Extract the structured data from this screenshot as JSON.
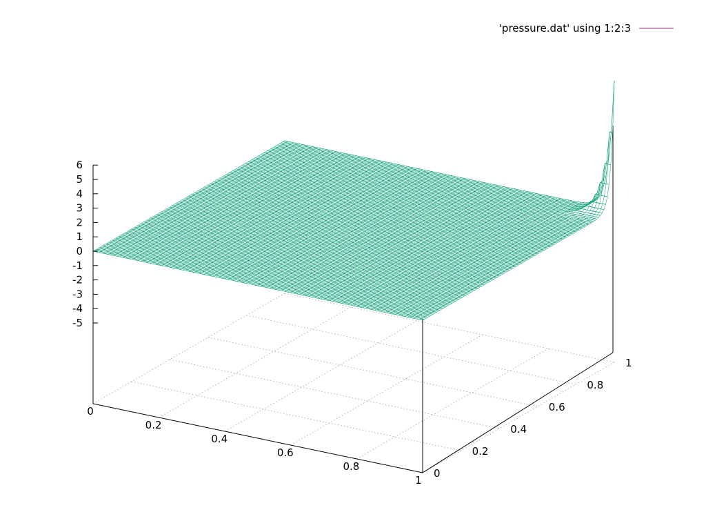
{
  "chart_data": {
    "type": "surface",
    "title": "",
    "legend": {
      "entries": [
        {
          "label": "'pressure.dat' using 1:2:3",
          "color": "#a0307e"
        }
      ],
      "placement": "top-right"
    },
    "surface_color": "#009e73",
    "grid": true,
    "x_axis": {
      "label": "",
      "range": [
        0,
        1
      ],
      "ticks": [
        {
          "value": 0,
          "label": "0"
        },
        {
          "value": 0.2,
          "label": "0.2"
        },
        {
          "value": 0.4,
          "label": "0.4"
        },
        {
          "value": 0.6,
          "label": "0.6"
        },
        {
          "value": 0.8,
          "label": "0.8"
        },
        {
          "value": 1,
          "label": "1"
        }
      ]
    },
    "y_axis": {
      "label": "",
      "range": [
        0,
        1
      ],
      "ticks": [
        {
          "value": 0,
          "label": "0"
        },
        {
          "value": 0.2,
          "label": "0.2"
        },
        {
          "value": 0.4,
          "label": "0.4"
        },
        {
          "value": 0.6,
          "label": "0.6"
        },
        {
          "value": 0.8,
          "label": "0.8"
        },
        {
          "value": 1,
          "label": "1"
        }
      ]
    },
    "z_axis": {
      "label": "",
      "range": [
        -5,
        6
      ],
      "ticks": [
        {
          "value": 6,
          "label": "6"
        },
        {
          "value": 5,
          "label": "5"
        },
        {
          "value": 4,
          "label": "4"
        },
        {
          "value": 3,
          "label": "3"
        },
        {
          "value": 2,
          "label": "2"
        },
        {
          "value": 1,
          "label": "1"
        },
        {
          "value": 0,
          "label": "0"
        },
        {
          "value": -1,
          "label": "-1"
        },
        {
          "value": -2,
          "label": "-2"
        },
        {
          "value": -3,
          "label": "-3"
        },
        {
          "value": -4,
          "label": "-4"
        },
        {
          "value": -5,
          "label": "-5"
        }
      ]
    },
    "surface": {
      "description_values": "pressure field, approximately 0 over the unit square, rising sharply to about 9 at the corner x=1, y=1",
      "base_value": 0,
      "corner_peak": {
        "x": 1,
        "y": 1,
        "z": 9
      }
    }
  }
}
